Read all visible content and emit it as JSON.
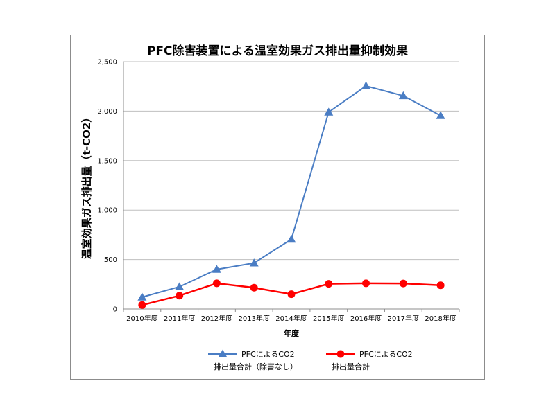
{
  "chart_data": {
    "type": "line",
    "title": "PFC除害装置による温室効果ガス排出量抑制効果",
    "xlabel": "年度",
    "ylabel": "温室効果ガス排出量（t-CO2）",
    "categories": [
      "2010年度",
      "2011年度",
      "2012年度",
      "2013年度",
      "2014年度",
      "2015年度",
      "2016年度",
      "2017年度",
      "2018年度"
    ],
    "ylim": [
      0,
      2500
    ],
    "yticks": [
      "0",
      "500",
      "1,000",
      "1,500",
      "2,000",
      "2,500"
    ],
    "grid": true,
    "legend_position": "bottom",
    "series": [
      {
        "legend_line1": "PFCによるCO2",
        "legend_line2": "排出量合計（除害なし）",
        "color": "#4a7dc4",
        "marker": "triangle",
        "values": [
          120,
          225,
          400,
          465,
          705,
          1990,
          2255,
          2155,
          1955
        ]
      },
      {
        "legend_line1": "PFCによるCO2",
        "legend_line2": "排出量合計",
        "color": "#ff0000",
        "marker": "circle",
        "values": [
          40,
          135,
          260,
          215,
          150,
          255,
          260,
          258,
          240
        ]
      }
    ]
  }
}
